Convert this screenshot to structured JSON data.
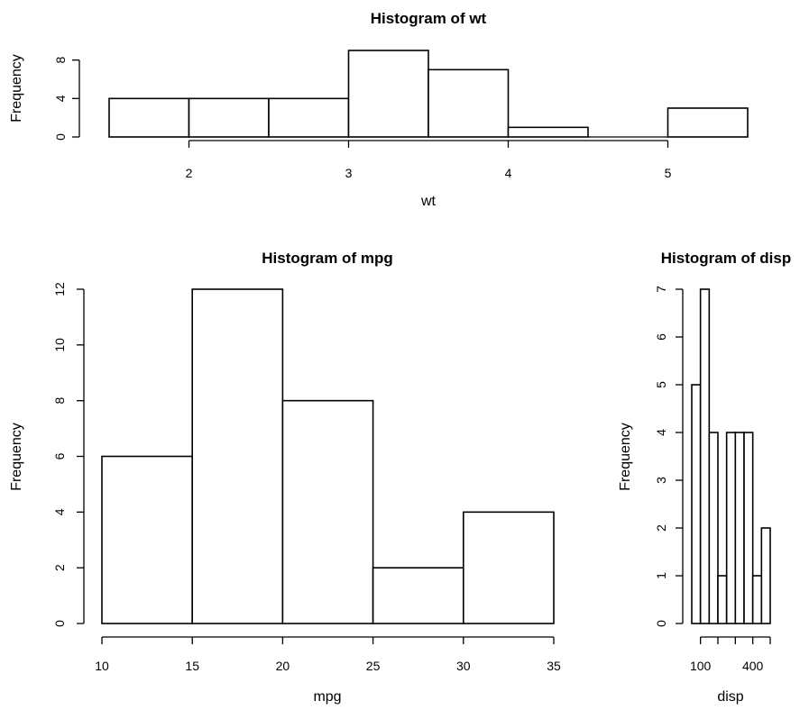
{
  "chart_data": [
    {
      "type": "bar",
      "title": "Histogram of wt",
      "xlabel": "wt",
      "ylabel": "Frequency",
      "bins": [
        [
          1.5,
          2.0
        ],
        [
          2.0,
          2.5
        ],
        [
          2.5,
          3.0
        ],
        [
          3.0,
          3.5
        ],
        [
          3.5,
          4.0
        ],
        [
          4.0,
          4.5
        ],
        [
          4.5,
          5.0
        ],
        [
          5.0,
          5.5
        ]
      ],
      "values": [
        4,
        4,
        4,
        9,
        7,
        1,
        0,
        3
      ],
      "xlim": [
        1.5,
        5.5
      ],
      "ylim": [
        0,
        9
      ],
      "xticks": [
        2,
        3,
        4,
        5
      ],
      "yticks": [
        0,
        4,
        8
      ]
    },
    {
      "type": "bar",
      "title": "Histogram of mpg",
      "xlabel": "mpg",
      "ylabel": "Frequency",
      "bins": [
        [
          10,
          15
        ],
        [
          15,
          20
        ],
        [
          20,
          25
        ],
        [
          25,
          30
        ],
        [
          30,
          35
        ]
      ],
      "values": [
        6,
        12,
        8,
        2,
        4
      ],
      "xlim": [
        10,
        35
      ],
      "ylim": [
        0,
        12
      ],
      "xticks": [
        10,
        15,
        20,
        25,
        30,
        35
      ],
      "yticks": [
        0,
        2,
        4,
        6,
        8,
        10,
        12
      ]
    },
    {
      "type": "bar",
      "title": "Histogram of disp",
      "xlabel": "disp",
      "ylabel": "Frequency",
      "bins": [
        [
          50,
          100
        ],
        [
          100,
          150
        ],
        [
          150,
          200
        ],
        [
          200,
          250
        ],
        [
          250,
          300
        ],
        [
          300,
          350
        ],
        [
          350,
          400
        ],
        [
          400,
          450
        ],
        [
          450,
          500
        ]
      ],
      "values": [
        5,
        7,
        4,
        1,
        4,
        4,
        4,
        1,
        2
      ],
      "xlim": [
        50,
        500
      ],
      "ylim": [
        0,
        7
      ],
      "xticks": [
        100,
        200,
        300,
        400,
        500
      ],
      "xticklabels": [
        "100",
        "",
        "",
        "400",
        ""
      ],
      "yticks": [
        0,
        1,
        2,
        3,
        4,
        5,
        6,
        7
      ]
    }
  ]
}
